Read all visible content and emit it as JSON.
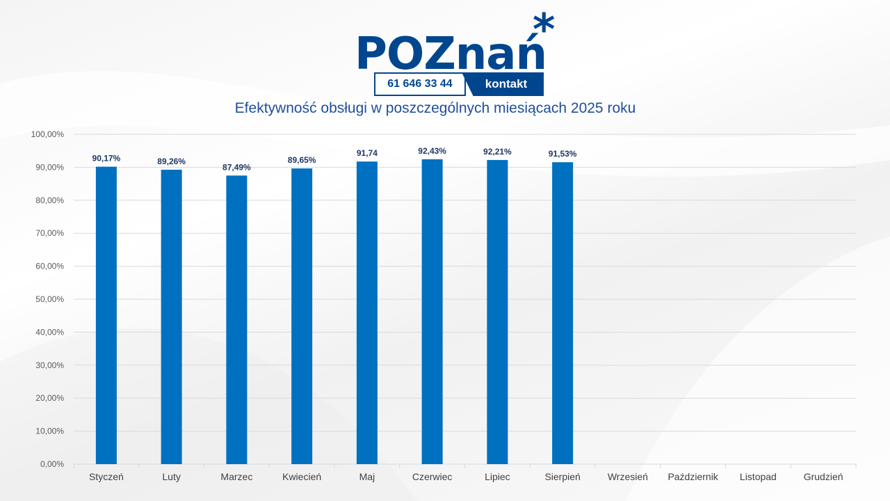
{
  "logo": {
    "wordmark": "POZnań",
    "star": "*",
    "phone": "61 646 33 44",
    "contact_label": "kontakt"
  },
  "colors": {
    "bar": "#0070c0",
    "label": "#1f3864",
    "axis_text": "#595959",
    "grid": "#d9d9d9",
    "brand": "#00468f"
  },
  "chart_data": {
    "type": "bar",
    "title": "Efektywność obsługi w poszczególnych miesiącach 2025 roku",
    "categories": [
      "Styczeń",
      "Luty",
      "Marzec",
      "Kwiecień",
      "Maj",
      "Czerwiec",
      "Lipiec",
      "Sierpień",
      "Wrzesień",
      "Październik",
      "Listopad",
      "Grudzień"
    ],
    "values": [
      90.17,
      89.26,
      87.49,
      89.65,
      91.74,
      92.43,
      92.21,
      91.53,
      null,
      null,
      null,
      null
    ],
    "data_labels": [
      "90,17%",
      "89,26%",
      "87,49%",
      "89,65%",
      "91,74",
      "92,43%",
      "92,21%",
      "91,53%",
      "",
      "",
      "",
      ""
    ],
    "y_ticks": [
      "0,00%",
      "10,00%",
      "20,00%",
      "30,00%",
      "40,00%",
      "50,00%",
      "60,00%",
      "70,00%",
      "80,00%",
      "90,00%",
      "100,00%"
    ],
    "ylim": [
      0,
      100
    ],
    "xlabel": "",
    "ylabel": "",
    "grid": true,
    "legend": "none"
  }
}
